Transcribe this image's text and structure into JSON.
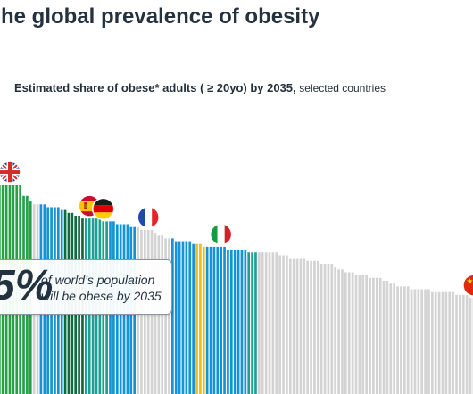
{
  "title": "he global prevalence of obesity",
  "subtitle": {
    "main": "Estimated share of obese* adults ( ≥ 20yo) by 2035,",
    "secondary": "selected countries"
  },
  "callout": {
    "value": "5%",
    "line1": "of world’s population",
    "line2": "will be obese by 2035"
  },
  "colors": {
    "green": "#27a145",
    "dark_green": "#0f6b3f",
    "teal": "#1f9f94",
    "blue": "#1692d6",
    "yellow": "#f1bb1a",
    "light_gray": "#d3d3d3"
  },
  "chart_data": {
    "type": "bar",
    "title": "Estimated share of obese* adults ( ≥ 20yo) by 2035,",
    "subtitle": "selected countries",
    "values": [
      74,
      74,
      74,
      74,
      74,
      74,
      74,
      70,
      70,
      68,
      67,
      67,
      67,
      67,
      66,
      66,
      66,
      66,
      65,
      65,
      64,
      64,
      63,
      63,
      62,
      62,
      62,
      62,
      62,
      62,
      61,
      61,
      61,
      61,
      60,
      60,
      60,
      60,
      59,
      59,
      59,
      58,
      58,
      58,
      58,
      57,
      56,
      56,
      55,
      55,
      55,
      54,
      54,
      54,
      54,
      54,
      53,
      53,
      53,
      52,
      52,
      52,
      52,
      52,
      52,
      52,
      51,
      51,
      51,
      51,
      51,
      51,
      50,
      50,
      50,
      50,
      50,
      50,
      50,
      50,
      50,
      49,
      49,
      49,
      48,
      48,
      48,
      48,
      48,
      47,
      47,
      47,
      47,
      46,
      46,
      46,
      46,
      45,
      44,
      44,
      43,
      43,
      43,
      42,
      42,
      42,
      42,
      41,
      41,
      41,
      41,
      40,
      40,
      39,
      39,
      38,
      38,
      38,
      38,
      37,
      37,
      37,
      37,
      37,
      37,
      36,
      36,
      36,
      36,
      36,
      36,
      36,
      35,
      35,
      35,
      35,
      34,
      34,
      34,
      33,
      33,
      33
    ],
    "ylim": [
      0,
      80
    ],
    "country_flags": [
      {
        "country": "United Kingdom",
        "flag": "uk-flag",
        "index": 3
      },
      {
        "country": "Spain",
        "flag": "spain-flag",
        "index": 26
      },
      {
        "country": "Germany",
        "flag": "germany-flag",
        "index": 30
      },
      {
        "country": "France",
        "flag": "france-flag",
        "index": 43
      },
      {
        "country": "Italy",
        "flag": "italy-flag",
        "index": 64
      },
      {
        "country": "China",
        "flag": "china-flag",
        "index": 137
      }
    ],
    "color_groups": [
      {
        "start": 0,
        "end": 9,
        "color": "#27a145"
      },
      {
        "start": 10,
        "end": 11,
        "color": "#d3d3d3"
      },
      {
        "start": 12,
        "end": 18,
        "color": "#1692d6"
      },
      {
        "start": 19,
        "end": 24,
        "color": "#0f6b3f"
      },
      {
        "start": 25,
        "end": 31,
        "color": "#1f9f94"
      },
      {
        "start": 32,
        "end": 39,
        "color": "#1692d6"
      },
      {
        "start": 40,
        "end": 49,
        "color": "#d3d3d3"
      },
      {
        "start": 50,
        "end": 56,
        "color": "#1692d6"
      },
      {
        "start": 57,
        "end": 59,
        "color": "#f1bb1a"
      },
      {
        "start": 60,
        "end": 71,
        "color": "#1692d6"
      },
      {
        "start": 72,
        "end": 74,
        "color": "#1f9f94"
      },
      {
        "start": 75,
        "end": 142,
        "color": "#d3d3d3"
      }
    ]
  }
}
